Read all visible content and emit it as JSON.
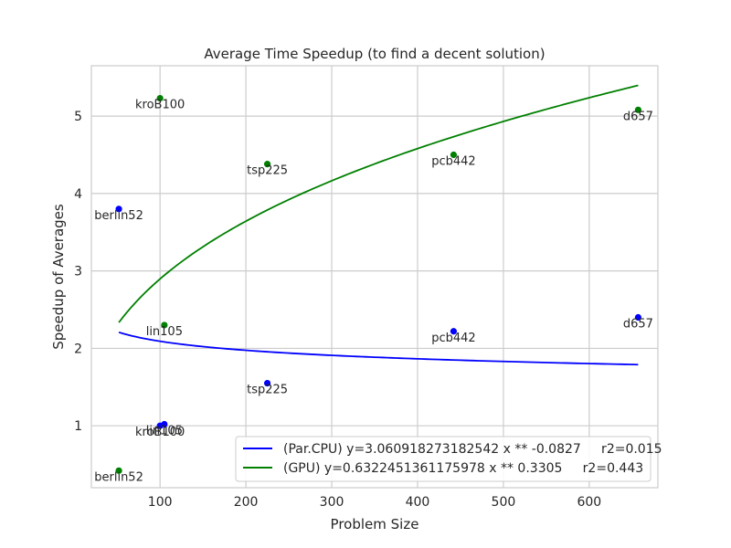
{
  "chart_data": {
    "type": "scatter",
    "title": "Average Time Speedup (to find a decent solution)",
    "xlabel": "Problem Size",
    "ylabel": "Speedup of Averages",
    "xlim": [
      20,
      680
    ],
    "ylim": [
      0.2,
      5.65
    ],
    "xticks": [
      100,
      200,
      300,
      400,
      500,
      600
    ],
    "yticks": [
      1,
      2,
      3,
      4,
      5
    ],
    "grid": true,
    "legend_position": "lower-right",
    "colors": {
      "par_cpu": "#0000ff",
      "gpu": "#008000"
    },
    "series": [
      {
        "key": "par_cpu",
        "points": [
          {
            "label": "berlin52",
            "x": 52,
            "y": 3.8
          },
          {
            "label": "kroB100",
            "x": 100,
            "y": 1.0
          },
          {
            "label": "lin105",
            "x": 105,
            "y": 1.02
          },
          {
            "label": "tsp225",
            "x": 225,
            "y": 1.55
          },
          {
            "label": "pcb442",
            "x": 442,
            "y": 2.22
          },
          {
            "label": "d657",
            "x": 657,
            "y": 2.4
          }
        ],
        "fit": {
          "a": 3.060918273182542,
          "b": -0.0827,
          "x_start": 52,
          "x_end": 657
        },
        "legend": "(Par.CPU) y=3.060918273182542 x ** -0.0827     r2=0.015"
      },
      {
        "key": "gpu",
        "points": [
          {
            "label": "berlin52",
            "x": 52,
            "y": 0.42
          },
          {
            "label": "kroB100",
            "x": 100,
            "y": 5.23
          },
          {
            "label": "lin105",
            "x": 105,
            "y": 2.3
          },
          {
            "label": "tsp225",
            "x": 225,
            "y": 4.38
          },
          {
            "label": "pcb442",
            "x": 442,
            "y": 4.5
          },
          {
            "label": "d657",
            "x": 657,
            "y": 5.08
          }
        ],
        "fit": {
          "a": 0.6322451361175978,
          "b": 0.3305,
          "x_start": 52,
          "x_end": 657
        },
        "legend": "(GPU) y=0.6322451361175978 x ** 0.3305     r2=0.443"
      }
    ]
  }
}
